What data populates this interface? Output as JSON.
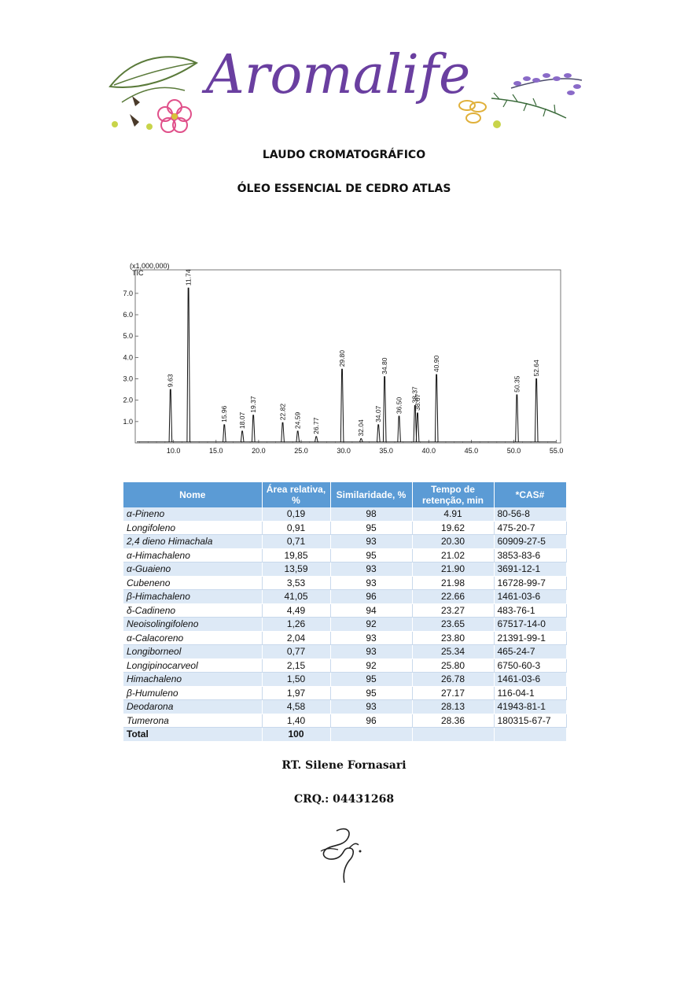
{
  "logo": {
    "text": "Aromalife",
    "color": "#6a3fa0"
  },
  "header": {
    "title": "LAUDO CROMATOGRÁFICO",
    "subtitle": "ÓLEO ESSENCIAL DE CEDRO ATLAS"
  },
  "chart_data": {
    "type": "line",
    "title": "",
    "scale_label": "(x1,000,000)",
    "ylabel": "TIC",
    "xlabel": "",
    "xlim": [
      5.5,
      55.5
    ],
    "ylim": [
      0,
      8.1
    ],
    "xticks": [
      "10.0",
      "15.0",
      "20.0",
      "25.0",
      "30.0",
      "35.0",
      "40.0",
      "45.0",
      "50.0",
      "55.0"
    ],
    "yticks": [
      "1.0",
      "2.0",
      "3.0",
      "4.0",
      "5.0",
      "6.0",
      "7.0"
    ],
    "grid": false,
    "peaks": [
      {
        "label": "9.63",
        "x": 9.63,
        "y": 2.5
      },
      {
        "label": "11.74",
        "x": 11.74,
        "y": 7.25
      },
      {
        "label": "15.96",
        "x": 15.96,
        "y": 0.85
      },
      {
        "label": "18.07",
        "x": 18.07,
        "y": 0.55
      },
      {
        "label": "19.37",
        "x": 19.37,
        "y": 1.3
      },
      {
        "label": "22.82",
        "x": 22.82,
        "y": 0.95
      },
      {
        "label": "24.59",
        "x": 24.59,
        "y": 0.55
      },
      {
        "label": "26.77",
        "x": 26.77,
        "y": 0.3
      },
      {
        "label": "29.80",
        "x": 29.8,
        "y": 3.45
      },
      {
        "label": "32.04",
        "x": 32.04,
        "y": 0.2
      },
      {
        "label": "34.07",
        "x": 34.07,
        "y": 0.85
      },
      {
        "label": "34.80",
        "x": 34.8,
        "y": 3.1
      },
      {
        "label": "36.50",
        "x": 36.5,
        "y": 1.25
      },
      {
        "label": "38.37",
        "x": 38.37,
        "y": 1.75
      },
      {
        "label": "38.67",
        "x": 38.67,
        "y": 1.4
      },
      {
        "label": "40.90",
        "x": 40.9,
        "y": 3.2
      },
      {
        "label": "50.35",
        "x": 50.35,
        "y": 2.25
      },
      {
        "label": "52.64",
        "x": 52.64,
        "y": 3.0
      }
    ]
  },
  "table": {
    "headers": [
      "Nome",
      "Área relativa, %",
      "Similaridade, %",
      "Tempo de retenção, min",
      "*CAS#"
    ],
    "rows": [
      [
        "α-Pineno",
        "0,19",
        "98",
        "4.91",
        "80-56-8"
      ],
      [
        "Longifoleno",
        "0,91",
        "95",
        "19.62",
        "475-20-7"
      ],
      [
        "2,4 dieno Himachala",
        "0,71",
        "93",
        "20.30",
        "60909-27-5"
      ],
      [
        "α-Himachaleno",
        "19,85",
        "95",
        "21.02",
        "3853-83-6"
      ],
      [
        "α-Guaieno",
        "13,59",
        "93",
        "21.90",
        "3691-12-1"
      ],
      [
        "Cubeneno",
        "3,53",
        "93",
        "21.98",
        "16728-99-7"
      ],
      [
        "β-Himachaleno",
        "41,05",
        "96",
        "22.66",
        "1461-03-6"
      ],
      [
        "δ-Cadineno",
        "4,49",
        "94",
        "23.27",
        "483-76-1"
      ],
      [
        "Neoisolingifoleno",
        "1,26",
        "92",
        "23.65",
        "67517-14-0"
      ],
      [
        "α-Calacoreno",
        "2,04",
        "93",
        "23.80",
        "21391-99-1"
      ],
      [
        "Longiborneol",
        "0,77",
        "93",
        "25.34",
        "465-24-7"
      ],
      [
        "Longipinocarveol",
        "2,15",
        "92",
        "25.80",
        "6750-60-3"
      ],
      [
        "Himachaleno",
        "1,50",
        "95",
        "26.78",
        "1461-03-6"
      ],
      [
        "β-Humuleno",
        "1,97",
        "95",
        "27.17",
        "116-04-1"
      ],
      [
        "Deodarona",
        "4,58",
        "93",
        "28.13",
        "41943-81-1"
      ],
      [
        "Tumerona",
        "1,40",
        "96",
        "28.36",
        "180315-67-7"
      ]
    ],
    "total": [
      "Total",
      "100",
      "",
      "",
      ""
    ]
  },
  "footer": {
    "responsible": "RT. Silene Fornasari",
    "crq": "CRQ.: 04431268"
  },
  "colors": {
    "header_bg": "#5b9bd5",
    "row_alt": "#dde9f6"
  }
}
